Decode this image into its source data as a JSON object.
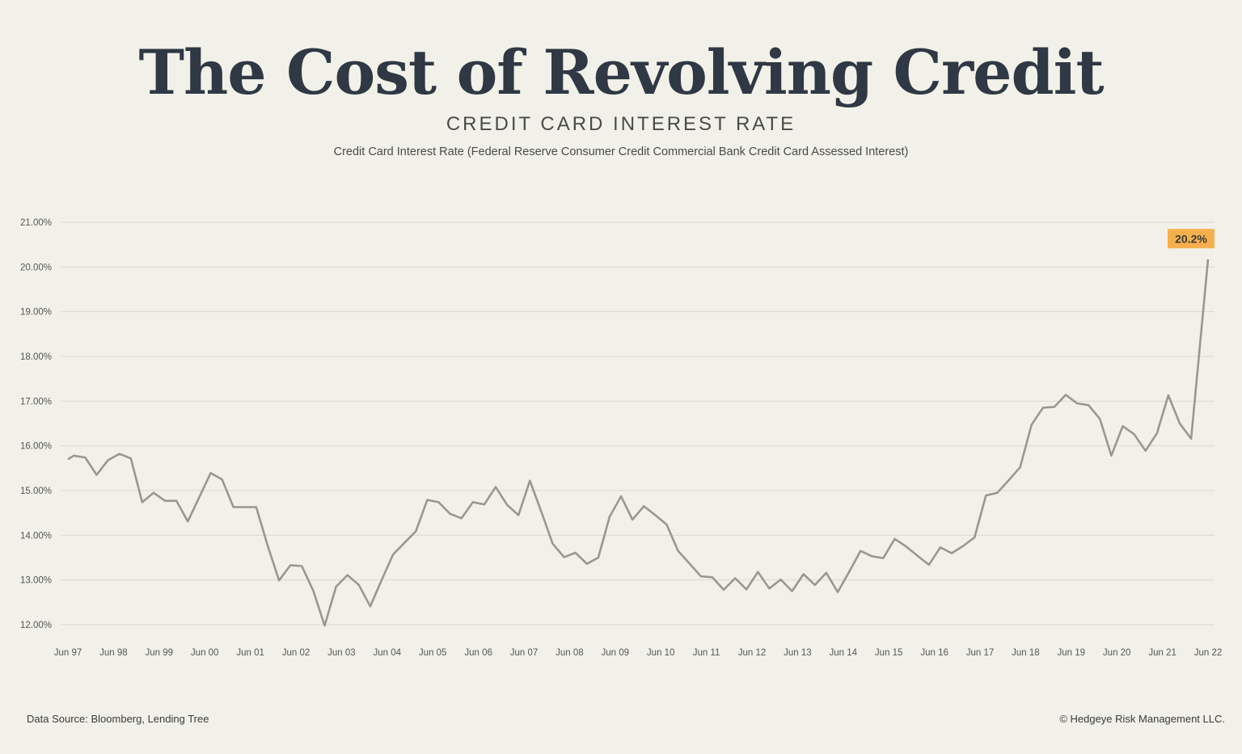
{
  "header": {
    "title": "The Cost of Revolving Credit",
    "subtitle": "CREDIT CARD INTEREST RATE",
    "description": "Credit Card Interest Rate (Federal Reserve Consumer Credit Commercial Bank Credit Card Assessed Interest)"
  },
  "footer": {
    "source": "Data Source: Bloomberg, Lending Tree",
    "copyright": "© Hedgeye Risk Management LLC."
  },
  "colors": {
    "background": "#f1f1e9",
    "line": "#9a9791",
    "grid": "#d9d9d1",
    "annotation_bg": "#f5b04d",
    "title": "#2f3844"
  },
  "chart_data": {
    "type": "line",
    "ylim": [
      11.8,
      21.0
    ],
    "y_ticks": [
      12,
      13,
      14,
      15,
      16,
      17,
      18,
      19,
      20,
      21
    ],
    "y_tick_labels": [
      "12.00%",
      "13.00%",
      "14.00%",
      "15.00%",
      "16.00%",
      "17.00%",
      "18.00%",
      "19.00%",
      "20.00%",
      "21.00%"
    ],
    "x_ticks": [
      "Jun 97",
      "Jun 98",
      "Jun 99",
      "Jun 00",
      "Jun 01",
      "Jun 02",
      "Jun 03",
      "Jun 04",
      "Jun 05",
      "Jun 06",
      "Jun 07",
      "Jun 08",
      "Jun 09",
      "Jun 10",
      "Jun 11",
      "Jun 12",
      "Jun 13",
      "Jun 14",
      "Jun 15",
      "Jun 16",
      "Jun 17",
      "Jun 18",
      "Jun 19",
      "Jun 20",
      "Jun 21",
      "Jun 22"
    ],
    "x_tick_positions": [
      1997.5,
      1998.5,
      1999.5,
      2000.5,
      2001.5,
      2002.5,
      2003.5,
      2004.5,
      2005.5,
      2006.5,
      2007.5,
      2008.5,
      2009.5,
      2010.5,
      2011.5,
      2012.5,
      2013.5,
      2014.5,
      2015.5,
      2016.5,
      2017.5,
      2018.5,
      2019.5,
      2020.5,
      2021.5,
      2022.5
    ],
    "xlim": [
      1997.5,
      2022.5
    ],
    "grid": true,
    "annotation": {
      "label": "20.2%",
      "x": 2022.5,
      "y": 20.2
    },
    "series": [
      {
        "x": [
          1997.5,
          1997.63,
          1997.88,
          1998.13,
          1998.38,
          1998.63,
          1998.88,
          1999.13,
          1999.38,
          1999.63,
          1999.88,
          2000.13,
          2000.38,
          2000.63,
          2000.88,
          2001.13,
          2001.38,
          2001.63,
          2001.88,
          2002.13,
          2002.38,
          2002.63,
          2002.88,
          2003.13,
          2003.38,
          2003.63,
          2003.88,
          2004.13,
          2004.38,
          2004.63,
          2004.88,
          2005.13,
          2005.38,
          2005.63,
          2005.88,
          2006.13,
          2006.38,
          2006.63,
          2006.88,
          2007.13,
          2007.38,
          2007.63,
          2007.88,
          2008.13,
          2008.38,
          2008.63,
          2008.88,
          2009.13,
          2009.38,
          2009.63,
          2009.88,
          2010.13,
          2010.38,
          2010.63,
          2010.88,
          2011.13,
          2011.38,
          2011.63,
          2011.88,
          2012.13,
          2012.38,
          2012.63,
          2012.88,
          2013.13,
          2013.38,
          2013.63,
          2013.88,
          2014.13,
          2014.38,
          2014.63,
          2014.88,
          2015.13,
          2015.38,
          2015.63,
          2015.88,
          2016.13,
          2016.38,
          2016.63,
          2016.88,
          2017.13,
          2017.38,
          2017.63,
          2017.88,
          2018.13,
          2018.38,
          2018.63,
          2018.88,
          2019.13,
          2019.38,
          2019.63,
          2019.88,
          2020.13,
          2020.38,
          2020.63,
          2020.88,
          2021.13,
          2021.38,
          2021.63,
          2021.88,
          2022.13,
          2022.5
        ],
        "values": [
          15.7,
          15.78,
          15.74,
          15.35,
          15.68,
          15.82,
          15.72,
          14.74,
          14.95,
          14.77,
          14.77,
          14.31,
          14.85,
          15.39,
          15.25,
          14.63,
          14.63,
          14.63,
          13.77,
          12.99,
          13.33,
          13.31,
          12.76,
          11.98,
          12.85,
          13.11,
          12.89,
          12.41,
          13.0,
          13.57,
          13.83,
          14.09,
          14.79,
          14.74,
          14.48,
          14.38,
          14.74,
          14.69,
          15.08,
          14.68,
          14.45,
          15.22,
          14.53,
          13.81,
          13.51,
          13.61,
          13.36,
          13.5,
          14.42,
          14.87,
          14.35,
          14.65,
          14.45,
          14.24,
          13.65,
          13.37,
          13.08,
          13.06,
          12.78,
          13.04,
          12.79,
          13.18,
          12.81,
          13.01,
          12.75,
          13.13,
          12.89,
          13.16,
          12.73,
          13.18,
          13.65,
          13.53,
          13.49,
          13.92,
          13.75,
          13.54,
          13.34,
          13.73,
          13.6,
          13.76,
          13.95,
          14.89,
          14.95,
          15.23,
          15.52,
          16.47,
          16.85,
          16.87,
          17.14,
          16.95,
          16.91,
          16.6,
          15.78,
          16.44,
          16.26,
          15.89,
          16.28,
          17.13,
          16.5,
          16.16,
          20.17
        ]
      }
    ]
  }
}
